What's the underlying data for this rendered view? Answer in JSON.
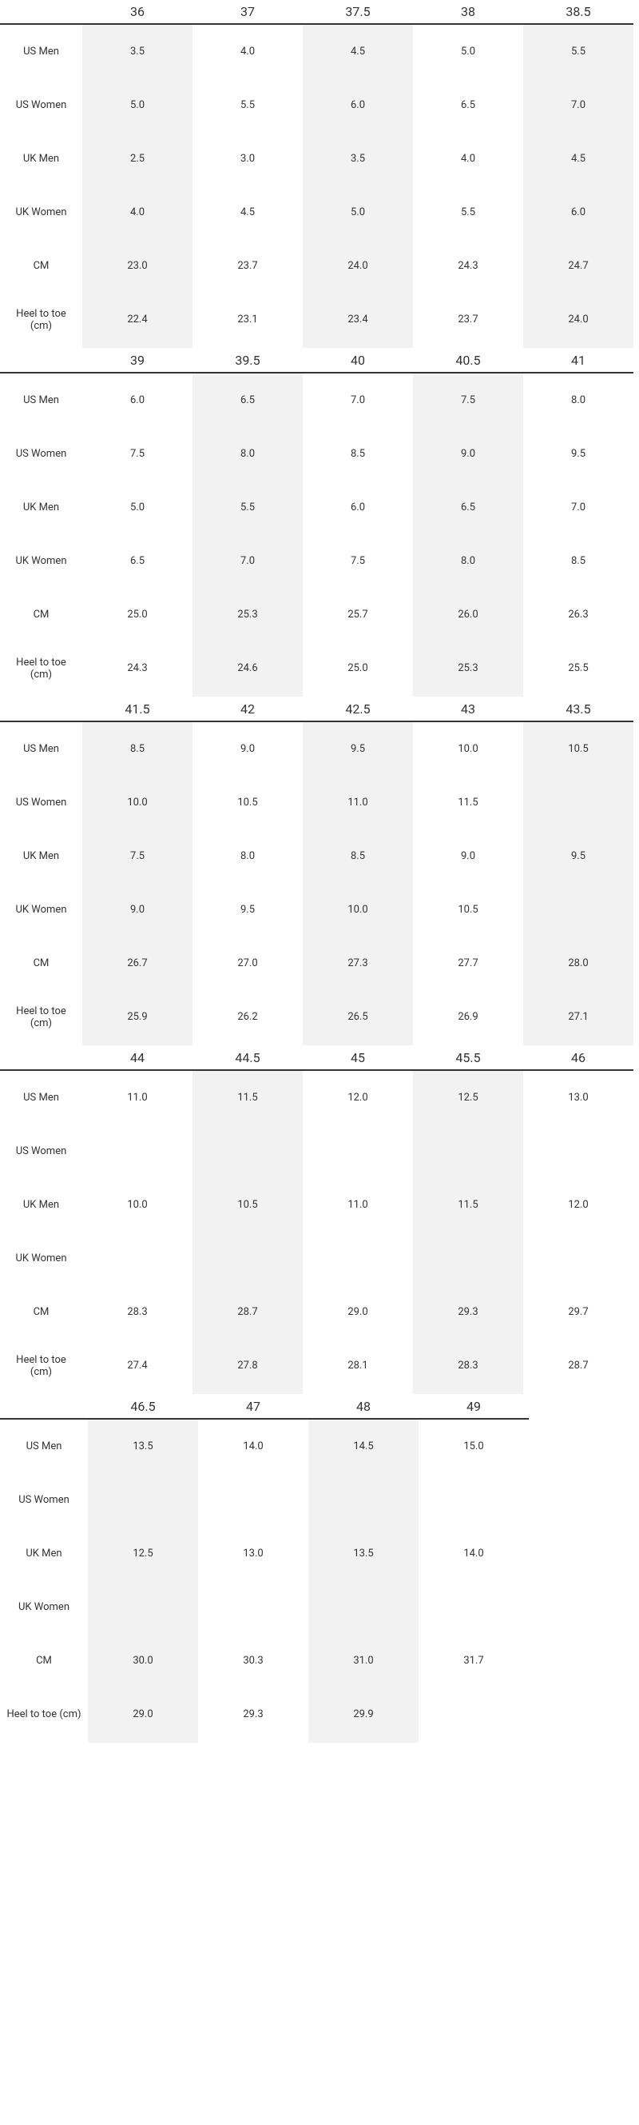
{
  "tables": [
    {
      "sizes": [
        "36",
        "37",
        "37.5",
        "38",
        "38.5"
      ],
      "rows": [
        {
          "label": "US Men",
          "values": [
            "3.5",
            "4.0",
            "4.5",
            "5.0",
            "5.5"
          ]
        },
        {
          "label": "US Women",
          "values": [
            "5.0",
            "5.5",
            "6.0",
            "6.5",
            "7.0"
          ]
        },
        {
          "label": "UK Men",
          "values": [
            "2.5",
            "3.0",
            "3.5",
            "4.0",
            "4.5"
          ]
        },
        {
          "label": "UK Women",
          "values": [
            "4.0",
            "4.5",
            "5.0",
            "5.5",
            "6.0"
          ]
        },
        {
          "label": "CM",
          "values": [
            "23.0",
            "23.7",
            "24.0",
            "24.3",
            "24.7"
          ]
        },
        {
          "label": "Heel to toe (cm)",
          "values": [
            "22.4",
            "23.1",
            "23.4",
            "23.7",
            "24.0"
          ]
        }
      ]
    },
    {
      "sizes": [
        "39",
        "39.5",
        "40",
        "40.5",
        "41"
      ],
      "rows": [
        {
          "label": "US Men",
          "values": [
            "6.0",
            "6.5",
            "7.0",
            "7.5",
            "8.0"
          ]
        },
        {
          "label": "US Women",
          "values": [
            "7.5",
            "8.0",
            "8.5",
            "9.0",
            "9.5"
          ]
        },
        {
          "label": "UK Men",
          "values": [
            "5.0",
            "5.5",
            "6.0",
            "6.5",
            "7.0"
          ]
        },
        {
          "label": "UK Women",
          "values": [
            "6.5",
            "7.0",
            "7.5",
            "8.0",
            "8.5"
          ]
        },
        {
          "label": "CM",
          "values": [
            "25.0",
            "25.3",
            "25.7",
            "26.0",
            "26.3"
          ]
        },
        {
          "label": "Heel to toe (cm)",
          "values": [
            "24.3",
            "24.6",
            "25.0",
            "25.3",
            "25.5"
          ]
        }
      ]
    },
    {
      "sizes": [
        "41.5",
        "42",
        "42.5",
        "43",
        "43.5"
      ],
      "rows": [
        {
          "label": "US Men",
          "values": [
            "8.5",
            "9.0",
            "9.5",
            "10.0",
            "10.5"
          ]
        },
        {
          "label": "US Women",
          "values": [
            "10.0",
            "10.5",
            "11.0",
            "11.5",
            null
          ]
        },
        {
          "label": "UK Men",
          "values": [
            "7.5",
            "8.0",
            "8.5",
            "9.0",
            "9.5"
          ]
        },
        {
          "label": "UK Women",
          "values": [
            "9.0",
            "9.5",
            "10.0",
            "10.5",
            null
          ]
        },
        {
          "label": "CM",
          "values": [
            "26.7",
            "27.0",
            "27.3",
            "27.7",
            "28.0"
          ]
        },
        {
          "label": "Heel to toe (cm)",
          "values": [
            "25.9",
            "26.2",
            "26.5",
            "26.9",
            "27.1"
          ]
        }
      ]
    },
    {
      "sizes": [
        "44",
        "44.5",
        "45",
        "45.5",
        "46"
      ],
      "rows": [
        {
          "label": "US Men",
          "values": [
            "11.0",
            "11.5",
            "12.0",
            "12.5",
            "13.0"
          ]
        },
        {
          "label": "US Women",
          "values": [
            null,
            null,
            null,
            null,
            null
          ]
        },
        {
          "label": "UK Men",
          "values": [
            "10.0",
            "10.5",
            "11.0",
            "11.5",
            "12.0"
          ]
        },
        {
          "label": "UK Women",
          "values": [
            null,
            null,
            null,
            null,
            null
          ]
        },
        {
          "label": "CM",
          "values": [
            "28.3",
            "28.7",
            "29.0",
            "29.3",
            "29.7"
          ]
        },
        {
          "label": "Heel to toe (cm)",
          "values": [
            "27.4",
            "27.8",
            "28.1",
            "28.3",
            "28.7"
          ]
        }
      ]
    },
    {
      "sizes": [
        "46.5",
        "47",
        "48",
        "49"
      ],
      "rows": [
        {
          "label": "US Men",
          "values": [
            "13.5",
            "14.0",
            "14.5",
            "15.0"
          ]
        },
        {
          "label": "US Women",
          "values": [
            null,
            null,
            null,
            null
          ]
        },
        {
          "label": "UK Men",
          "values": [
            "12.5",
            "13.0",
            "13.5",
            "14.0"
          ]
        },
        {
          "label": "UK Women",
          "values": [
            null,
            null,
            null,
            null
          ]
        },
        {
          "label": "CM",
          "values": [
            "30.0",
            "30.3",
            "31.0",
            "31.7"
          ]
        },
        {
          "label": "Heel to toe (cm)",
          "values": [
            "29.0",
            "29.3",
            "29.9",
            null
          ]
        }
      ]
    }
  ]
}
